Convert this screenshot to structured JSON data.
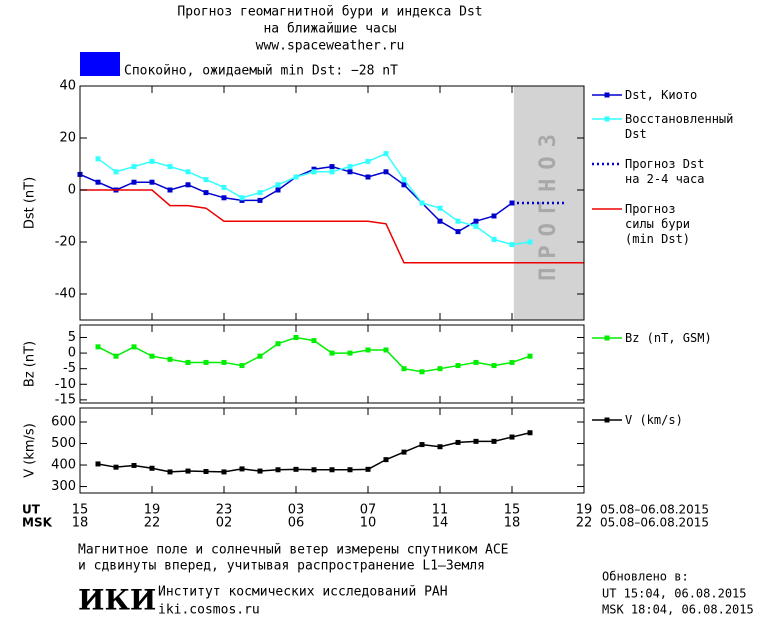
{
  "header": {
    "title": "Прогноз геомагнитной бури и индекса Dst",
    "subtitle": "на ближайшие часы",
    "url": "www.spaceweather.ru"
  },
  "status": {
    "text": "Спокойно, ожидаемый min Dst: −28 nT",
    "color": "#0000ff"
  },
  "chart_data": [
    {
      "type": "line",
      "ylabel": "Dst (nT)",
      "xlim": [
        0,
        28
      ],
      "ylim": [
        -50,
        40
      ],
      "yticks": [
        -40,
        -20,
        0,
        20,
        40
      ],
      "forecast_region": {
        "x": [
          24.1,
          28
        ],
        "label": "ПРОГНОЗ",
        "color": "#d3d3d3"
      },
      "series": [
        {
          "name": "Dst, Киото",
          "color": "#0000cc",
          "marker": true,
          "dash": false,
          "x": [
            0,
            1,
            2,
            3,
            4,
            5,
            6,
            7,
            8,
            9,
            10,
            11,
            12,
            13,
            14,
            15,
            16,
            17,
            18,
            19,
            20,
            21,
            22,
            23,
            24
          ],
          "values": [
            6,
            3,
            0,
            3,
            3,
            0,
            2,
            -1,
            -3,
            -4,
            -4,
            0,
            5,
            8,
            9,
            7,
            5,
            7,
            2,
            -5,
            -12,
            -16,
            -12,
            -10,
            -5
          ]
        },
        {
          "name": "Восстановленный\nDst",
          "color": "#33ffff",
          "marker": true,
          "dash": false,
          "x": [
            1,
            2,
            3,
            4,
            5,
            6,
            7,
            8,
            9,
            10,
            11,
            12,
            13,
            14,
            15,
            16,
            17,
            18,
            19,
            20,
            21,
            22,
            23,
            24,
            25
          ],
          "values": [
            12,
            7,
            9,
            11,
            9,
            7,
            4,
            1,
            -3,
            -1,
            2,
            5,
            7,
            7,
            9,
            11,
            14,
            4,
            -5,
            -7,
            -12,
            -14,
            -19,
            -21,
            -20
          ]
        },
        {
          "name": "Прогноз Dst\nна 2-4 часа",
          "color": "#0000cc",
          "marker": false,
          "dash": true,
          "x": [
            24,
            27
          ],
          "values": [
            -5,
            -5
          ]
        },
        {
          "name": "Прогноз\nсилы бури\n(min Dst)",
          "color": "#ee0000",
          "marker": false,
          "dash": false,
          "x": [
            0,
            4,
            5,
            6,
            7,
            8,
            16,
            17,
            18,
            28
          ],
          "values": [
            0,
            0,
            -6,
            -6,
            -7,
            -12,
            -12,
            -13,
            -28,
            -28
          ]
        }
      ]
    },
    {
      "type": "line",
      "ylabel": "Bz (nT)",
      "xlim": [
        0,
        28
      ],
      "ylim": [
        -16,
        9
      ],
      "yticks": [
        5,
        0,
        -5,
        -10,
        -15
      ],
      "series": [
        {
          "name": "Bz (nT, GSM)",
          "color": "#00ee00",
          "marker": true,
          "dash": false,
          "x": [
            1,
            2,
            3,
            4,
            5,
            6,
            7,
            8,
            9,
            10,
            11,
            12,
            13,
            14,
            15,
            16,
            17,
            18,
            19,
            20,
            21,
            22,
            23,
            24,
            25
          ],
          "values": [
            2,
            -1,
            2,
            -1,
            -2,
            -3,
            -3,
            -3,
            -4,
            -1,
            3,
            5,
            4,
            0,
            0,
            1,
            1,
            -5,
            -6,
            -5,
            -4,
            -3,
            -4,
            -3,
            -1
          ]
        }
      ]
    },
    {
      "type": "line",
      "ylabel": "V (km/s)",
      "xlim": [
        0,
        28
      ],
      "ylim": [
        270,
        665
      ],
      "yticks": [
        300,
        400,
        500,
        600
      ],
      "xticks": [
        {
          "value": 0,
          "label": "15"
        },
        {
          "value": 4,
          "label": "19"
        },
        {
          "value": 8,
          "label": "23"
        },
        {
          "value": 12,
          "label": "03"
        },
        {
          "value": 16,
          "label": "07"
        },
        {
          "value": 20,
          "label": "11"
        },
        {
          "value": 24,
          "label": "15"
        },
        {
          "value": 28,
          "label": "19"
        }
      ],
      "msk_xticks": [
        {
          "value": 0,
          "label": "18"
        },
        {
          "value": 4,
          "label": "22"
        },
        {
          "value": 8,
          "label": "02"
        },
        {
          "value": 12,
          "label": "06"
        },
        {
          "value": 16,
          "label": "10"
        },
        {
          "value": 20,
          "label": "14"
        },
        {
          "value": 24,
          "label": "18"
        },
        {
          "value": 28,
          "label": "22"
        }
      ],
      "ut_label": "UT",
      "msk_label": "MSK",
      "ut_dates": "05.08–06.08.2015",
      "msk_dates": "05.08–06.08.2015",
      "series": [
        {
          "name": "V (km/s)",
          "color": "#000000",
          "marker": true,
          "dash": false,
          "x": [
            1,
            2,
            3,
            4,
            5,
            6,
            7,
            8,
            9,
            10,
            11,
            12,
            13,
            14,
            15,
            16,
            17,
            18,
            19,
            20,
            21,
            22,
            23,
            24,
            25
          ],
          "values": [
            405,
            390,
            398,
            385,
            368,
            372,
            370,
            368,
            382,
            372,
            378,
            380,
            378,
            378,
            378,
            380,
            425,
            460,
            495,
            485,
            505,
            510,
            510,
            530,
            550
          ]
        }
      ]
    }
  ],
  "footer": {
    "note1": "Магнитное поле и солнечный ветер измерены спутником ACE",
    "note2": "и сдвинуты вперед, учитывая распространение L1–Земля",
    "logo": "ИКИ",
    "institute": "Институт космических исследований РАН",
    "site": "iki.cosmos.ru",
    "updated": "Обновлено в:",
    "updated_ut": "UT  15:04, 06.08.2015",
    "updated_msk": "MSK 18:04, 06.08.2015"
  }
}
